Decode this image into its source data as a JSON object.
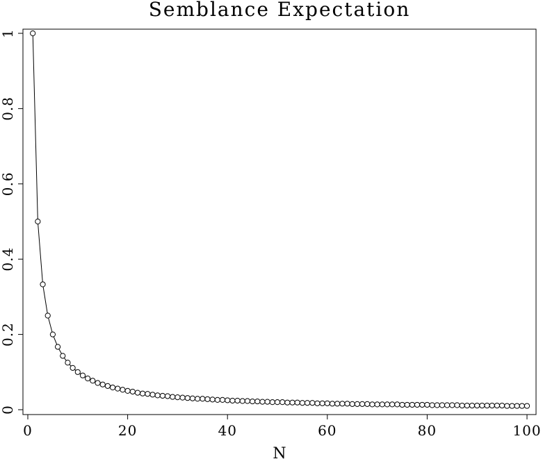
{
  "chart_data": {
    "type": "line",
    "title": "Semblance Expectation",
    "xlabel": "N",
    "ylabel": "",
    "xlim": [
      0,
      101
    ],
    "ylim": [
      0,
      1
    ],
    "x_ticks": [
      0,
      20,
      40,
      60,
      80,
      100
    ],
    "x_tick_labels": [
      "0",
      "20",
      "40",
      "60",
      "80",
      "100"
    ],
    "y_ticks": [
      0,
      0.2,
      0.4,
      0.6,
      0.8,
      1
    ],
    "y_tick_labels": [
      "0",
      "0.2",
      "0.4",
      "0.6",
      "0.8",
      "1"
    ],
    "grid": false,
    "markers": "open-circle",
    "line_color": "#000000",
    "series": [
      {
        "x": [
          1,
          2,
          3,
          4,
          5,
          6,
          7,
          8,
          9,
          10,
          11,
          12,
          13,
          14,
          15,
          16,
          17,
          18,
          19,
          20,
          21,
          22,
          23,
          24,
          25,
          26,
          27,
          28,
          29,
          30,
          31,
          32,
          33,
          34,
          35,
          36,
          37,
          38,
          39,
          40,
          41,
          42,
          43,
          44,
          45,
          46,
          47,
          48,
          49,
          50,
          51,
          52,
          53,
          54,
          55,
          56,
          57,
          58,
          59,
          60,
          61,
          62,
          63,
          64,
          65,
          66,
          67,
          68,
          69,
          70,
          71,
          72,
          73,
          74,
          75,
          76,
          77,
          78,
          79,
          80,
          81,
          82,
          83,
          84,
          85,
          86,
          87,
          88,
          89,
          90,
          91,
          92,
          93,
          94,
          95,
          96,
          97,
          98,
          99,
          100
        ],
        "y": [
          1,
          0.5,
          0.333,
          0.25,
          0.2,
          0.167,
          0.143,
          0.125,
          0.111,
          0.1,
          0.091,
          0.083,
          0.077,
          0.071,
          0.067,
          0.063,
          0.059,
          0.056,
          0.053,
          0.05,
          0.048,
          0.045,
          0.043,
          0.042,
          0.04,
          0.038,
          0.037,
          0.036,
          0.034,
          0.033,
          0.032,
          0.031,
          0.03,
          0.029,
          0.029,
          0.028,
          0.027,
          0.026,
          0.026,
          0.025,
          0.024,
          0.024,
          0.023,
          0.023,
          0.022,
          0.022,
          0.021,
          0.021,
          0.02,
          0.02,
          0.02,
          0.019,
          0.019,
          0.019,
          0.018,
          0.018,
          0.018,
          0.017,
          0.017,
          0.017,
          0.016,
          0.016,
          0.016,
          0.016,
          0.015,
          0.015,
          0.015,
          0.015,
          0.014,
          0.014,
          0.014,
          0.014,
          0.014,
          0.014,
          0.013,
          0.013,
          0.013,
          0.013,
          0.013,
          0.013,
          0.012,
          0.012,
          0.012,
          0.012,
          0.012,
          0.012,
          0.011,
          0.011,
          0.011,
          0.011,
          0.011,
          0.011,
          0.011,
          0.011,
          0.011,
          0.01,
          0.01,
          0.01,
          0.01,
          0.01
        ]
      }
    ]
  }
}
